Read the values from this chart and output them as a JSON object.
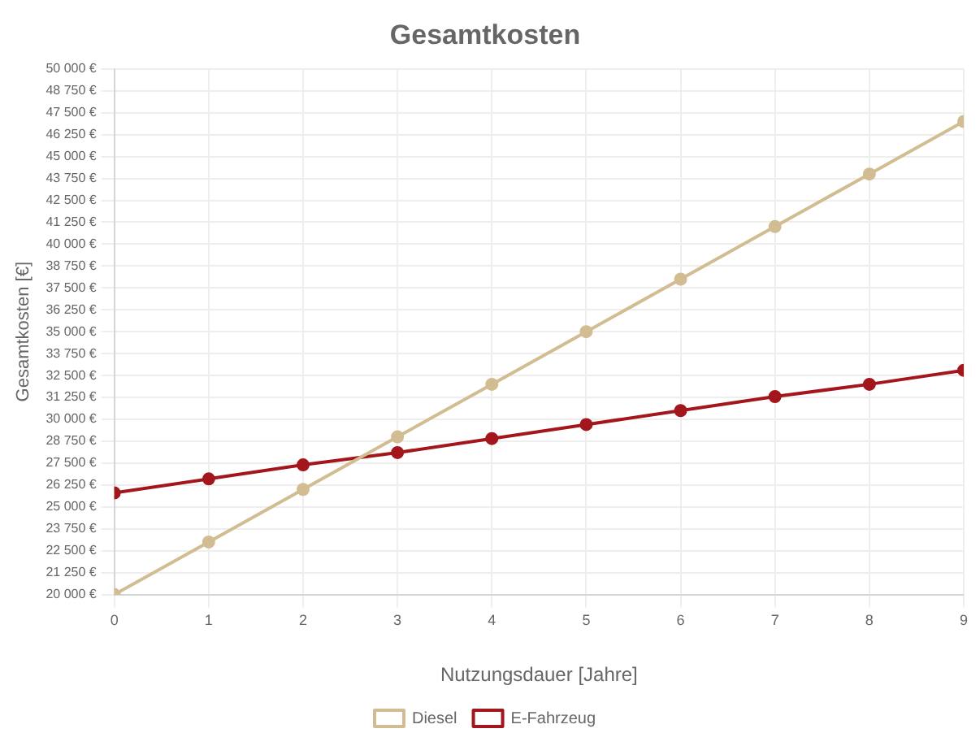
{
  "chart_data": {
    "type": "line",
    "title": "Gesamtkosten",
    "xlabel": "Nutzungsdauer [Jahre]",
    "ylabel": "Gesamtkosten [€]",
    "x": [
      0,
      1,
      2,
      3,
      4,
      5,
      6,
      7,
      8,
      9
    ],
    "series": [
      {
        "name": "Diesel",
        "color": "#d2bd92",
        "values": [
          20000,
          23000,
          26000,
          29000,
          32000,
          35000,
          38000,
          41000,
          44000,
          47000
        ]
      },
      {
        "name": "E-Fahrzeug",
        "color": "#a3161c",
        "values": [
          25800,
          26600,
          27400,
          28100,
          28900,
          29700,
          30500,
          31300,
          32000,
          32800
        ]
      }
    ],
    "xlim": [
      0,
      9
    ],
    "xticks": [
      0,
      1,
      2,
      3,
      4,
      5,
      6,
      7,
      8,
      9
    ],
    "ylim": [
      20000,
      50000
    ],
    "yticks": [
      {
        "value": 20000,
        "label": "20 000 €"
      },
      {
        "value": 21250,
        "label": "21 250 €"
      },
      {
        "value": 22500,
        "label": "22 500 €"
      },
      {
        "value": 23750,
        "label": "23 750 €"
      },
      {
        "value": 25000,
        "label": "25 000 €"
      },
      {
        "value": 26250,
        "label": "26 250 €"
      },
      {
        "value": 27500,
        "label": "27 500 €"
      },
      {
        "value": 28750,
        "label": "28 750 €"
      },
      {
        "value": 30000,
        "label": "30 000 €"
      },
      {
        "value": 31250,
        "label": "31 250 €"
      },
      {
        "value": 32500,
        "label": "32 500 €"
      },
      {
        "value": 33750,
        "label": "33 750 €"
      },
      {
        "value": 35000,
        "label": "35 000 €"
      },
      {
        "value": 36250,
        "label": "36 250 €"
      },
      {
        "value": 37500,
        "label": "37 500 €"
      },
      {
        "value": 38750,
        "label": "38 750 €"
      },
      {
        "value": 40000,
        "label": "40 000 €"
      },
      {
        "value": 41250,
        "label": "41 250 €"
      },
      {
        "value": 42500,
        "label": "42 500 €"
      },
      {
        "value": 43750,
        "label": "43 750 €"
      },
      {
        "value": 45000,
        "label": "45 000 €"
      },
      {
        "value": 46250,
        "label": "46 250 €"
      },
      {
        "value": 47500,
        "label": "47 500 €"
      },
      {
        "value": 48750,
        "label": "48 750 €"
      },
      {
        "value": 50000,
        "label": "50 000 €"
      }
    ],
    "grid": true,
    "legend": "bottom",
    "marker": "circle",
    "line_style": "solid"
  }
}
